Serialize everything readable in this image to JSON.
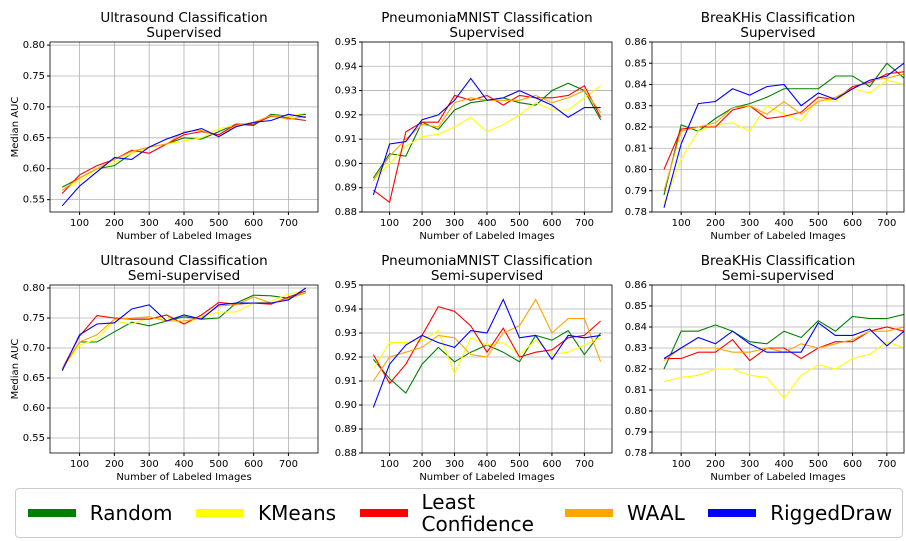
{
  "chart_data": [
    {
      "type": "line",
      "title": "Ultrasound Classification",
      "subtitle": "Supervised",
      "xlabel": "Number of Labeled Images",
      "ylabel": "Median AUC",
      "grid": true,
      "x": [
        50,
        100,
        150,
        200,
        250,
        300,
        350,
        400,
        450,
        500,
        550,
        600,
        650,
        700,
        750
      ],
      "xlim": [
        15,
        785
      ],
      "xticks": [
        100,
        200,
        300,
        400,
        500,
        600,
        700
      ],
      "ylim": [
        0.53,
        0.805
      ],
      "yticks": [
        0.55,
        {
          "value": 0.6,
          "label": "0.60"
        },
        0.65,
        {
          "value": 0.7,
          "label": "0.70"
        },
        0.75,
        {
          "value": 0.8,
          "label": "0.80"
        }
      ],
      "series": [
        {
          "name": "Random",
          "color": "#008000",
          "values": [
            0.57,
            0.585,
            0.6,
            0.605,
            0.625,
            0.635,
            0.64,
            0.65,
            0.648,
            0.66,
            0.672,
            0.67,
            0.688,
            0.685,
            0.688
          ]
        },
        {
          "name": "KMeans",
          "color": "#ffff00",
          "values": [
            0.565,
            0.58,
            0.6,
            0.61,
            0.625,
            0.635,
            0.64,
            0.645,
            0.65,
            0.665,
            0.67,
            0.675,
            0.685,
            0.685,
            0.69
          ]
        },
        {
          "name": "Least Confidence",
          "color": "#ff0000",
          "values": [
            0.56,
            0.59,
            0.605,
            0.615,
            0.63,
            0.625,
            0.64,
            0.655,
            0.66,
            0.655,
            0.672,
            0.672,
            0.685,
            0.682,
            0.678
          ]
        },
        {
          "name": "WAAL",
          "color": "#ffa500",
          "values": [
            0.565,
            0.585,
            0.6,
            0.615,
            0.628,
            0.635,
            0.64,
            0.66,
            0.662,
            0.652,
            0.67,
            0.675,
            0.686,
            0.68,
            0.685
          ]
        },
        {
          "name": "RiggedDraw",
          "color": "#0000ff",
          "values": [
            0.54,
            0.572,
            0.595,
            0.618,
            0.615,
            0.635,
            0.648,
            0.658,
            0.665,
            0.652,
            0.668,
            0.675,
            0.678,
            0.688,
            0.683
          ]
        }
      ]
    },
    {
      "type": "line",
      "title": "PneumoniaMNIST Classification",
      "subtitle": "Supervised",
      "xlabel": "Number of Labeled Images",
      "grid": true,
      "x": [
        50,
        100,
        150,
        200,
        250,
        300,
        350,
        400,
        450,
        500,
        550,
        600,
        650,
        700,
        750
      ],
      "xlim": [
        15,
        785
      ],
      "xticks": [
        100,
        200,
        300,
        400,
        500,
        600,
        700
      ],
      "ylim": [
        0.88,
        0.95
      ],
      "yticks": [
        0.88,
        0.89,
        {
          "value": 0.9,
          "label": "0.90"
        },
        0.91,
        0.92,
        0.93,
        0.94,
        0.95
      ],
      "series": [
        {
          "name": "Random",
          "color": "#008000",
          "values": [
            0.894,
            0.904,
            0.903,
            0.917,
            0.914,
            0.922,
            0.925,
            0.926,
            0.927,
            0.925,
            0.924,
            0.93,
            0.933,
            0.93,
            0.918
          ]
        },
        {
          "name": "KMeans",
          "color": "#ffff00",
          "values": [
            0.893,
            0.9,
            0.907,
            0.911,
            0.912,
            0.915,
            0.919,
            0.913,
            0.916,
            0.92,
            0.925,
            0.922,
            0.922,
            0.927,
            0.932
          ]
        },
        {
          "name": "Least Confidence",
          "color": "#ff0000",
          "values": [
            0.889,
            0.884,
            0.913,
            0.917,
            0.917,
            0.928,
            0.926,
            0.928,
            0.924,
            0.928,
            0.927,
            0.927,
            0.928,
            0.932,
            0.919
          ]
        },
        {
          "name": "WAAL",
          "color": "#ffa500",
          "values": [
            0.893,
            0.903,
            0.91,
            0.916,
            0.915,
            0.925,
            0.927,
            0.926,
            0.926,
            0.926,
            0.928,
            0.925,
            0.927,
            0.93,
            0.921
          ]
        },
        {
          "name": "RiggedDraw",
          "color": "#0000ff",
          "values": [
            0.887,
            0.908,
            0.909,
            0.918,
            0.92,
            0.926,
            0.935,
            0.926,
            0.927,
            0.93,
            0.927,
            0.924,
            0.919,
            0.923,
            0.923
          ]
        }
      ]
    },
    {
      "type": "line",
      "title": "BreaKHis Classification",
      "subtitle": "Supervised",
      "xlabel": "Number of Labeled Images",
      "grid": true,
      "x": [
        50,
        100,
        150,
        200,
        250,
        300,
        350,
        400,
        450,
        500,
        550,
        600,
        650,
        700,
        750
      ],
      "xlim": [
        15,
        750
      ],
      "xticks": [
        100,
        200,
        300,
        400,
        500,
        600,
        700
      ],
      "ylim": [
        0.78,
        0.86
      ],
      "yticks": [
        0.78,
        0.79,
        {
          "value": 0.8,
          "label": "0.80"
        },
        0.81,
        0.82,
        0.83,
        0.84,
        0.85,
        0.86
      ],
      "series": [
        {
          "name": "Random",
          "color": "#008000",
          "values": [
            0.788,
            0.821,
            0.818,
            0.824,
            0.829,
            0.831,
            0.834,
            0.838,
            0.838,
            0.838,
            0.844,
            0.844,
            0.839,
            0.85,
            0.843
          ]
        },
        {
          "name": "KMeans",
          "color": "#ffff00",
          "values": [
            0.784,
            0.805,
            0.818,
            0.821,
            0.822,
            0.818,
            0.83,
            0.826,
            0.823,
            0.833,
            0.832,
            0.838,
            0.836,
            0.842,
            0.84
          ]
        },
        {
          "name": "Least Confidence",
          "color": "#ff0000",
          "values": [
            0.8,
            0.819,
            0.82,
            0.82,
            0.828,
            0.83,
            0.824,
            0.825,
            0.827,
            0.834,
            0.833,
            0.839,
            0.841,
            0.845,
            0.846
          ]
        },
        {
          "name": "WAAL",
          "color": "#ffa500",
          "values": [
            0.79,
            0.818,
            0.82,
            0.822,
            0.829,
            0.83,
            0.826,
            0.832,
            0.826,
            0.832,
            0.834,
            0.838,
            0.842,
            0.843,
            0.845
          ]
        },
        {
          "name": "RiggedDraw",
          "color": "#0000ff",
          "values": [
            0.782,
            0.812,
            0.831,
            0.832,
            0.838,
            0.835,
            0.839,
            0.84,
            0.83,
            0.836,
            0.833,
            0.838,
            0.842,
            0.844,
            0.85
          ]
        }
      ]
    },
    {
      "type": "line",
      "title": "Ultrasound Classification",
      "subtitle": "Semi-supervised",
      "xlabel": "Number of Labeled Images",
      "ylabel": "Median AUC",
      "grid": true,
      "x": [
        50,
        100,
        150,
        200,
        250,
        300,
        350,
        400,
        450,
        500,
        550,
        600,
        650,
        700,
        750
      ],
      "xlim": [
        15,
        785
      ],
      "xticks": [
        100,
        200,
        300,
        400,
        500,
        600,
        700
      ],
      "ylim": [
        0.525,
        0.805
      ],
      "yticks": [
        0.55,
        {
          "value": 0.6,
          "label": "0.60"
        },
        0.65,
        {
          "value": 0.7,
          "label": "0.70"
        },
        0.75,
        {
          "value": 0.8,
          "label": "0.80"
        }
      ],
      "series": [
        {
          "name": "Random",
          "color": "#008000",
          "values": [
            0.665,
            0.71,
            0.71,
            0.727,
            0.743,
            0.737,
            0.745,
            0.752,
            0.748,
            0.75,
            0.775,
            0.788,
            0.787,
            0.783,
            0.792
          ]
        },
        {
          "name": "KMeans",
          "color": "#ffff00",
          "values": [
            0.665,
            0.705,
            0.715,
            0.745,
            0.74,
            0.75,
            0.75,
            0.74,
            0.752,
            0.76,
            0.76,
            0.775,
            0.778,
            0.79,
            0.795
          ]
        },
        {
          "name": "Least Confidence",
          "color": "#ff0000",
          "values": [
            0.665,
            0.72,
            0.754,
            0.75,
            0.748,
            0.748,
            0.755,
            0.74,
            0.755,
            0.776,
            0.773,
            0.775,
            0.773,
            0.785,
            0.795
          ]
        },
        {
          "name": "WAAL",
          "color": "#ffa500",
          "values": [
            0.665,
            0.71,
            0.722,
            0.748,
            0.75,
            0.752,
            0.745,
            0.745,
            0.75,
            0.77,
            0.772,
            0.785,
            0.775,
            0.782,
            0.792
          ]
        },
        {
          "name": "RiggedDraw",
          "color": "#0000ff",
          "values": [
            0.662,
            0.722,
            0.74,
            0.742,
            0.765,
            0.772,
            0.745,
            0.755,
            0.748,
            0.772,
            0.775,
            0.775,
            0.775,
            0.78,
            0.8
          ]
        }
      ]
    },
    {
      "type": "line",
      "title": "PneumoniaMNIST Classification",
      "subtitle": "Semi-supervised",
      "xlabel": "Number of Labeled Images",
      "grid": true,
      "x": [
        50,
        100,
        150,
        200,
        250,
        300,
        350,
        400,
        450,
        500,
        550,
        600,
        650,
        700,
        750
      ],
      "xlim": [
        15,
        785
      ],
      "xticks": [
        100,
        200,
        300,
        400,
        500,
        600,
        700
      ],
      "ylim": [
        0.88,
        0.95
      ],
      "yticks": [
        0.88,
        0.89,
        {
          "value": 0.9,
          "label": "0.90"
        },
        0.91,
        0.92,
        0.93,
        0.94,
        0.95
      ],
      "series": [
        {
          "name": "Random",
          "color": "#008000",
          "values": [
            0.919,
            0.911,
            0.905,
            0.917,
            0.924,
            0.918,
            0.922,
            0.925,
            0.922,
            0.918,
            0.929,
            0.927,
            0.931,
            0.921,
            0.93
          ]
        },
        {
          "name": "KMeans",
          "color": "#ffff00",
          "values": [
            0.915,
            0.926,
            0.926,
            0.927,
            0.931,
            0.913,
            0.928,
            0.925,
            0.926,
            0.921,
            0.927,
            0.921,
            0.922,
            0.925,
            0.928
          ]
        },
        {
          "name": "Least Confidence",
          "color": "#ff0000",
          "values": [
            0.921,
            0.909,
            0.917,
            0.929,
            0.941,
            0.939,
            0.933,
            0.922,
            0.932,
            0.92,
            0.922,
            0.923,
            0.928,
            0.929,
            0.935
          ]
        },
        {
          "name": "WAAL",
          "color": "#ffa500",
          "values": [
            0.91,
            0.92,
            0.922,
            0.924,
            0.929,
            0.928,
            0.921,
            0.92,
            0.93,
            0.933,
            0.944,
            0.93,
            0.936,
            0.936,
            0.918
          ]
        },
        {
          "name": "RiggedDraw",
          "color": "#0000ff",
          "values": [
            0.899,
            0.917,
            0.925,
            0.929,
            0.926,
            0.924,
            0.931,
            0.93,
            0.944,
            0.928,
            0.929,
            0.919,
            0.929,
            0.928,
            0.929
          ]
        }
      ]
    },
    {
      "type": "line",
      "title": "BreaKHis Classification",
      "subtitle": "Semi-supervised",
      "xlabel": "Number of Labeled Images",
      "grid": true,
      "x": [
        50,
        100,
        150,
        200,
        250,
        300,
        350,
        400,
        450,
        500,
        550,
        600,
        650,
        700,
        750
      ],
      "xlim": [
        15,
        750
      ],
      "xticks": [
        100,
        200,
        300,
        400,
        500,
        600,
        700
      ],
      "ylim": [
        0.78,
        0.86
      ],
      "yticks": [
        0.78,
        0.79,
        {
          "value": 0.8,
          "label": "0.80"
        },
        0.81,
        0.82,
        0.83,
        0.84,
        0.85,
        0.86
      ],
      "series": [
        {
          "name": "Random",
          "color": "#008000",
          "values": [
            0.82,
            0.838,
            0.838,
            0.841,
            0.838,
            0.833,
            0.832,
            0.838,
            0.835,
            0.843,
            0.838,
            0.845,
            0.844,
            0.844,
            0.846
          ]
        },
        {
          "name": "KMeans",
          "color": "#ffff00",
          "values": [
            0.814,
            0.816,
            0.817,
            0.82,
            0.82,
            0.817,
            0.816,
            0.806,
            0.817,
            0.822,
            0.82,
            0.825,
            0.827,
            0.833,
            0.83
          ]
        },
        {
          "name": "Least Confidence",
          "color": "#ff0000",
          "values": [
            0.825,
            0.825,
            0.828,
            0.828,
            0.834,
            0.824,
            0.83,
            0.83,
            0.825,
            0.83,
            0.833,
            0.833,
            0.838,
            0.84,
            0.838
          ]
        },
        {
          "name": "WAAL",
          "color": "#ffa500",
          "values": [
            0.824,
            0.83,
            0.83,
            0.83,
            0.828,
            0.828,
            0.83,
            0.828,
            0.832,
            0.83,
            0.832,
            0.834,
            0.838,
            0.838,
            0.84
          ]
        },
        {
          "name": "RiggedDraw",
          "color": "#0000ff",
          "values": [
            0.825,
            0.83,
            0.835,
            0.832,
            0.838,
            0.832,
            0.828,
            0.828,
            0.828,
            0.842,
            0.836,
            0.836,
            0.839,
            0.831,
            0.838
          ]
        }
      ]
    }
  ]
}
